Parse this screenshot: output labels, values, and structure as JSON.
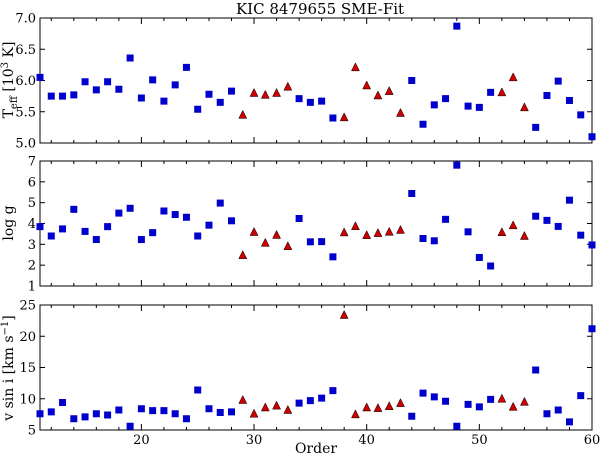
{
  "chart_data": [
    {
      "type": "scatter",
      "title": "KIC 8479655 SME-Fit",
      "ylabel_main": "T",
      "ylabel_sub": "eff",
      "ylabel_rest": " [10",
      "ylabel_sup": "3",
      "ylabel_end": " K]",
      "xlim": [
        11,
        60
      ],
      "ylim": [
        5.0,
        7.0
      ],
      "yticks": [
        "5.0",
        "5.5",
        "6.0",
        "6.5",
        "7.0"
      ],
      "ytick_values": [
        5.0,
        5.5,
        6.0,
        6.5,
        7.0
      ],
      "grid": false,
      "series": [
        {
          "marker": "square",
          "color": "#0000cc",
          "points": [
            [
              11,
              6.05
            ],
            [
              12,
              5.75
            ],
            [
              13,
              5.75
            ],
            [
              14,
              5.77
            ],
            [
              15,
              5.98
            ],
            [
              16,
              5.85
            ],
            [
              17,
              5.98
            ],
            [
              18,
              5.86
            ],
            [
              19,
              6.36
            ],
            [
              20,
              5.72
            ],
            [
              21,
              6.01
            ],
            [
              22,
              5.67
            ],
            [
              23,
              5.93
            ],
            [
              24,
              6.21
            ],
            [
              25,
              5.54
            ],
            [
              26,
              5.78
            ],
            [
              27,
              5.65
            ],
            [
              28,
              5.83
            ],
            [
              34,
              5.71
            ],
            [
              35,
              5.65
            ],
            [
              36,
              5.67
            ],
            [
              37,
              5.4
            ],
            [
              44,
              6.0
            ],
            [
              45,
              5.3
            ],
            [
              46,
              5.61
            ],
            [
              47,
              5.71
            ],
            [
              48,
              6.87
            ],
            [
              49,
              5.59
            ],
            [
              50,
              5.57
            ],
            [
              51,
              5.81
            ],
            [
              55,
              5.25
            ],
            [
              56,
              5.76
            ],
            [
              57,
              5.99
            ],
            [
              58,
              5.68
            ],
            [
              59,
              5.45
            ],
            [
              60,
              5.1
            ]
          ]
        },
        {
          "marker": "triangle",
          "color": "#cc0000",
          "points": [
            [
              29,
              5.45
            ],
            [
              30,
              5.8
            ],
            [
              31,
              5.77
            ],
            [
              32,
              5.8
            ],
            [
              33,
              5.9
            ],
            [
              38,
              5.41
            ],
            [
              39,
              6.21
            ],
            [
              40,
              5.92
            ],
            [
              41,
              5.76
            ],
            [
              42,
              5.83
            ],
            [
              43,
              5.48
            ],
            [
              52,
              5.81
            ],
            [
              53,
              6.05
            ],
            [
              54,
              5.57
            ]
          ]
        }
      ]
    },
    {
      "type": "scatter",
      "ylabel": "log g",
      "xlim": [
        11,
        60
      ],
      "ylim": [
        1,
        7
      ],
      "yticks": [
        "1",
        "2",
        "3",
        "4",
        "5",
        "6",
        "7"
      ],
      "ytick_values": [
        1,
        2,
        3,
        4,
        5,
        6,
        7
      ],
      "grid": false,
      "series": [
        {
          "marker": "square",
          "color": "#0000cc",
          "points": [
            [
              11,
              3.85
            ],
            [
              12,
              3.4
            ],
            [
              13,
              3.74
            ],
            [
              14,
              4.68
            ],
            [
              15,
              3.62
            ],
            [
              16,
              3.23
            ],
            [
              17,
              3.85
            ],
            [
              18,
              4.5
            ],
            [
              19,
              4.73
            ],
            [
              20,
              3.23
            ],
            [
              21,
              3.56
            ],
            [
              22,
              4.6
            ],
            [
              23,
              4.43
            ],
            [
              24,
              4.3
            ],
            [
              25,
              3.4
            ],
            [
              26,
              3.92
            ],
            [
              27,
              4.98
            ],
            [
              28,
              4.13
            ],
            [
              34,
              4.24
            ],
            [
              35,
              3.12
            ],
            [
              36,
              3.13
            ],
            [
              37,
              2.4
            ],
            [
              44,
              5.44
            ],
            [
              45,
              3.28
            ],
            [
              46,
              3.17
            ],
            [
              47,
              4.2
            ],
            [
              48,
              6.8
            ],
            [
              49,
              3.6
            ],
            [
              50,
              2.37
            ],
            [
              51,
              1.96
            ],
            [
              55,
              4.35
            ],
            [
              56,
              4.15
            ],
            [
              57,
              3.86
            ],
            [
              58,
              5.12
            ],
            [
              59,
              3.44
            ],
            [
              60,
              2.97
            ]
          ]
        },
        {
          "marker": "triangle",
          "color": "#cc0000",
          "points": [
            [
              29,
              2.48
            ],
            [
              30,
              3.59
            ],
            [
              31,
              3.07
            ],
            [
              32,
              3.45
            ],
            [
              33,
              2.91
            ],
            [
              38,
              3.57
            ],
            [
              39,
              3.87
            ],
            [
              40,
              3.44
            ],
            [
              41,
              3.54
            ],
            [
              42,
              3.6
            ],
            [
              43,
              3.69
            ],
            [
              52,
              3.58
            ],
            [
              53,
              3.91
            ],
            [
              54,
              3.4
            ]
          ]
        }
      ]
    },
    {
      "type": "scatter",
      "ylabel_main": "v sin i [km s",
      "ylabel_sup": "−1",
      "ylabel_end": "]",
      "xlabel": "Order",
      "xlim": [
        11,
        60
      ],
      "ylim": [
        5,
        25
      ],
      "xticks": [
        "20",
        "30",
        "40",
        "50",
        "60"
      ],
      "xtick_values": [
        20,
        30,
        40,
        50,
        60
      ],
      "yticks": [
        "5",
        "10",
        "15",
        "20",
        "25"
      ],
      "ytick_values": [
        5,
        10,
        15,
        20,
        25
      ],
      "grid": false,
      "series": [
        {
          "marker": "square",
          "color": "#0000cc",
          "points": [
            [
              11,
              7.6
            ],
            [
              12,
              7.9
            ],
            [
              13,
              9.4
            ],
            [
              14,
              6.8
            ],
            [
              15,
              7.1
            ],
            [
              16,
              7.6
            ],
            [
              17,
              7.4
            ],
            [
              18,
              8.2
            ],
            [
              19,
              5.6
            ],
            [
              20,
              8.4
            ],
            [
              21,
              8.1
            ],
            [
              22,
              8.1
            ],
            [
              23,
              7.6
            ],
            [
              24,
              6.8
            ],
            [
              25,
              11.4
            ],
            [
              26,
              8.4
            ],
            [
              27,
              7.8
            ],
            [
              28,
              7.9
            ],
            [
              34,
              9.3
            ],
            [
              35,
              9.7
            ],
            [
              36,
              10.1
            ],
            [
              37,
              11.3
            ],
            [
              44,
              7.2
            ],
            [
              45,
              10.9
            ],
            [
              46,
              10.3
            ],
            [
              47,
              9.6
            ],
            [
              48,
              5.6
            ],
            [
              49,
              9.1
            ],
            [
              50,
              8.7
            ],
            [
              51,
              9.9
            ],
            [
              55,
              14.6
            ],
            [
              56,
              7.6
            ],
            [
              57,
              8.2
            ],
            [
              58,
              6.3
            ],
            [
              59,
              10.5
            ],
            [
              60,
              21.2
            ]
          ]
        },
        {
          "marker": "triangle",
          "color": "#cc0000",
          "points": [
            [
              29,
              9.8
            ],
            [
              30,
              7.6
            ],
            [
              31,
              8.6
            ],
            [
              32,
              8.9
            ],
            [
              33,
              8.2
            ],
            [
              38,
              23.4
            ],
            [
              39,
              7.5
            ],
            [
              40,
              8.6
            ],
            [
              41,
              8.5
            ],
            [
              42,
              8.8
            ],
            [
              43,
              9.3
            ],
            [
              52,
              10.0
            ],
            [
              53,
              8.7
            ],
            [
              54,
              9.5
            ]
          ]
        }
      ]
    }
  ]
}
